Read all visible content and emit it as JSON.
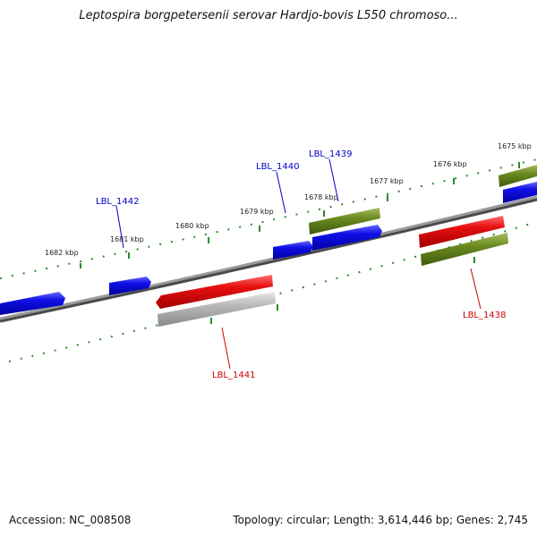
{
  "title": "Leptospira borgpetersenii serovar Hardjo-bovis L550 chromoso...",
  "footer": {
    "accession": "Accession: NC_008508",
    "topology": "Topology: circular; Length: 3,614,446 bp; Genes: 2,745"
  },
  "colors": {
    "forward_cds": "#1010e8",
    "reverse_cds": "#e81010",
    "grey_feature": "#b8b8b8",
    "olive_feature": "#6a8a20",
    "backbone": "#7a7a7a",
    "tick": "#2a8a2a",
    "label_blue": "#0000cc",
    "label_red": "#cc0000"
  },
  "scale_labels": [
    "1682 kbp",
    "1681 kbp",
    "1680 kbp",
    "1679 kbp",
    "1678 kbp",
    "1677 kbp",
    "1676 kbp",
    "1675 kbp"
  ],
  "gene_labels": [
    {
      "text": "LBL_1442",
      "strand": "forward"
    },
    {
      "text": "LBL_1440",
      "strand": "forward"
    },
    {
      "text": "LBL_1439",
      "strand": "forward"
    },
    {
      "text": "LBL_1441",
      "strand": "reverse"
    },
    {
      "text": "LBL_1438",
      "strand": "reverse"
    }
  ]
}
